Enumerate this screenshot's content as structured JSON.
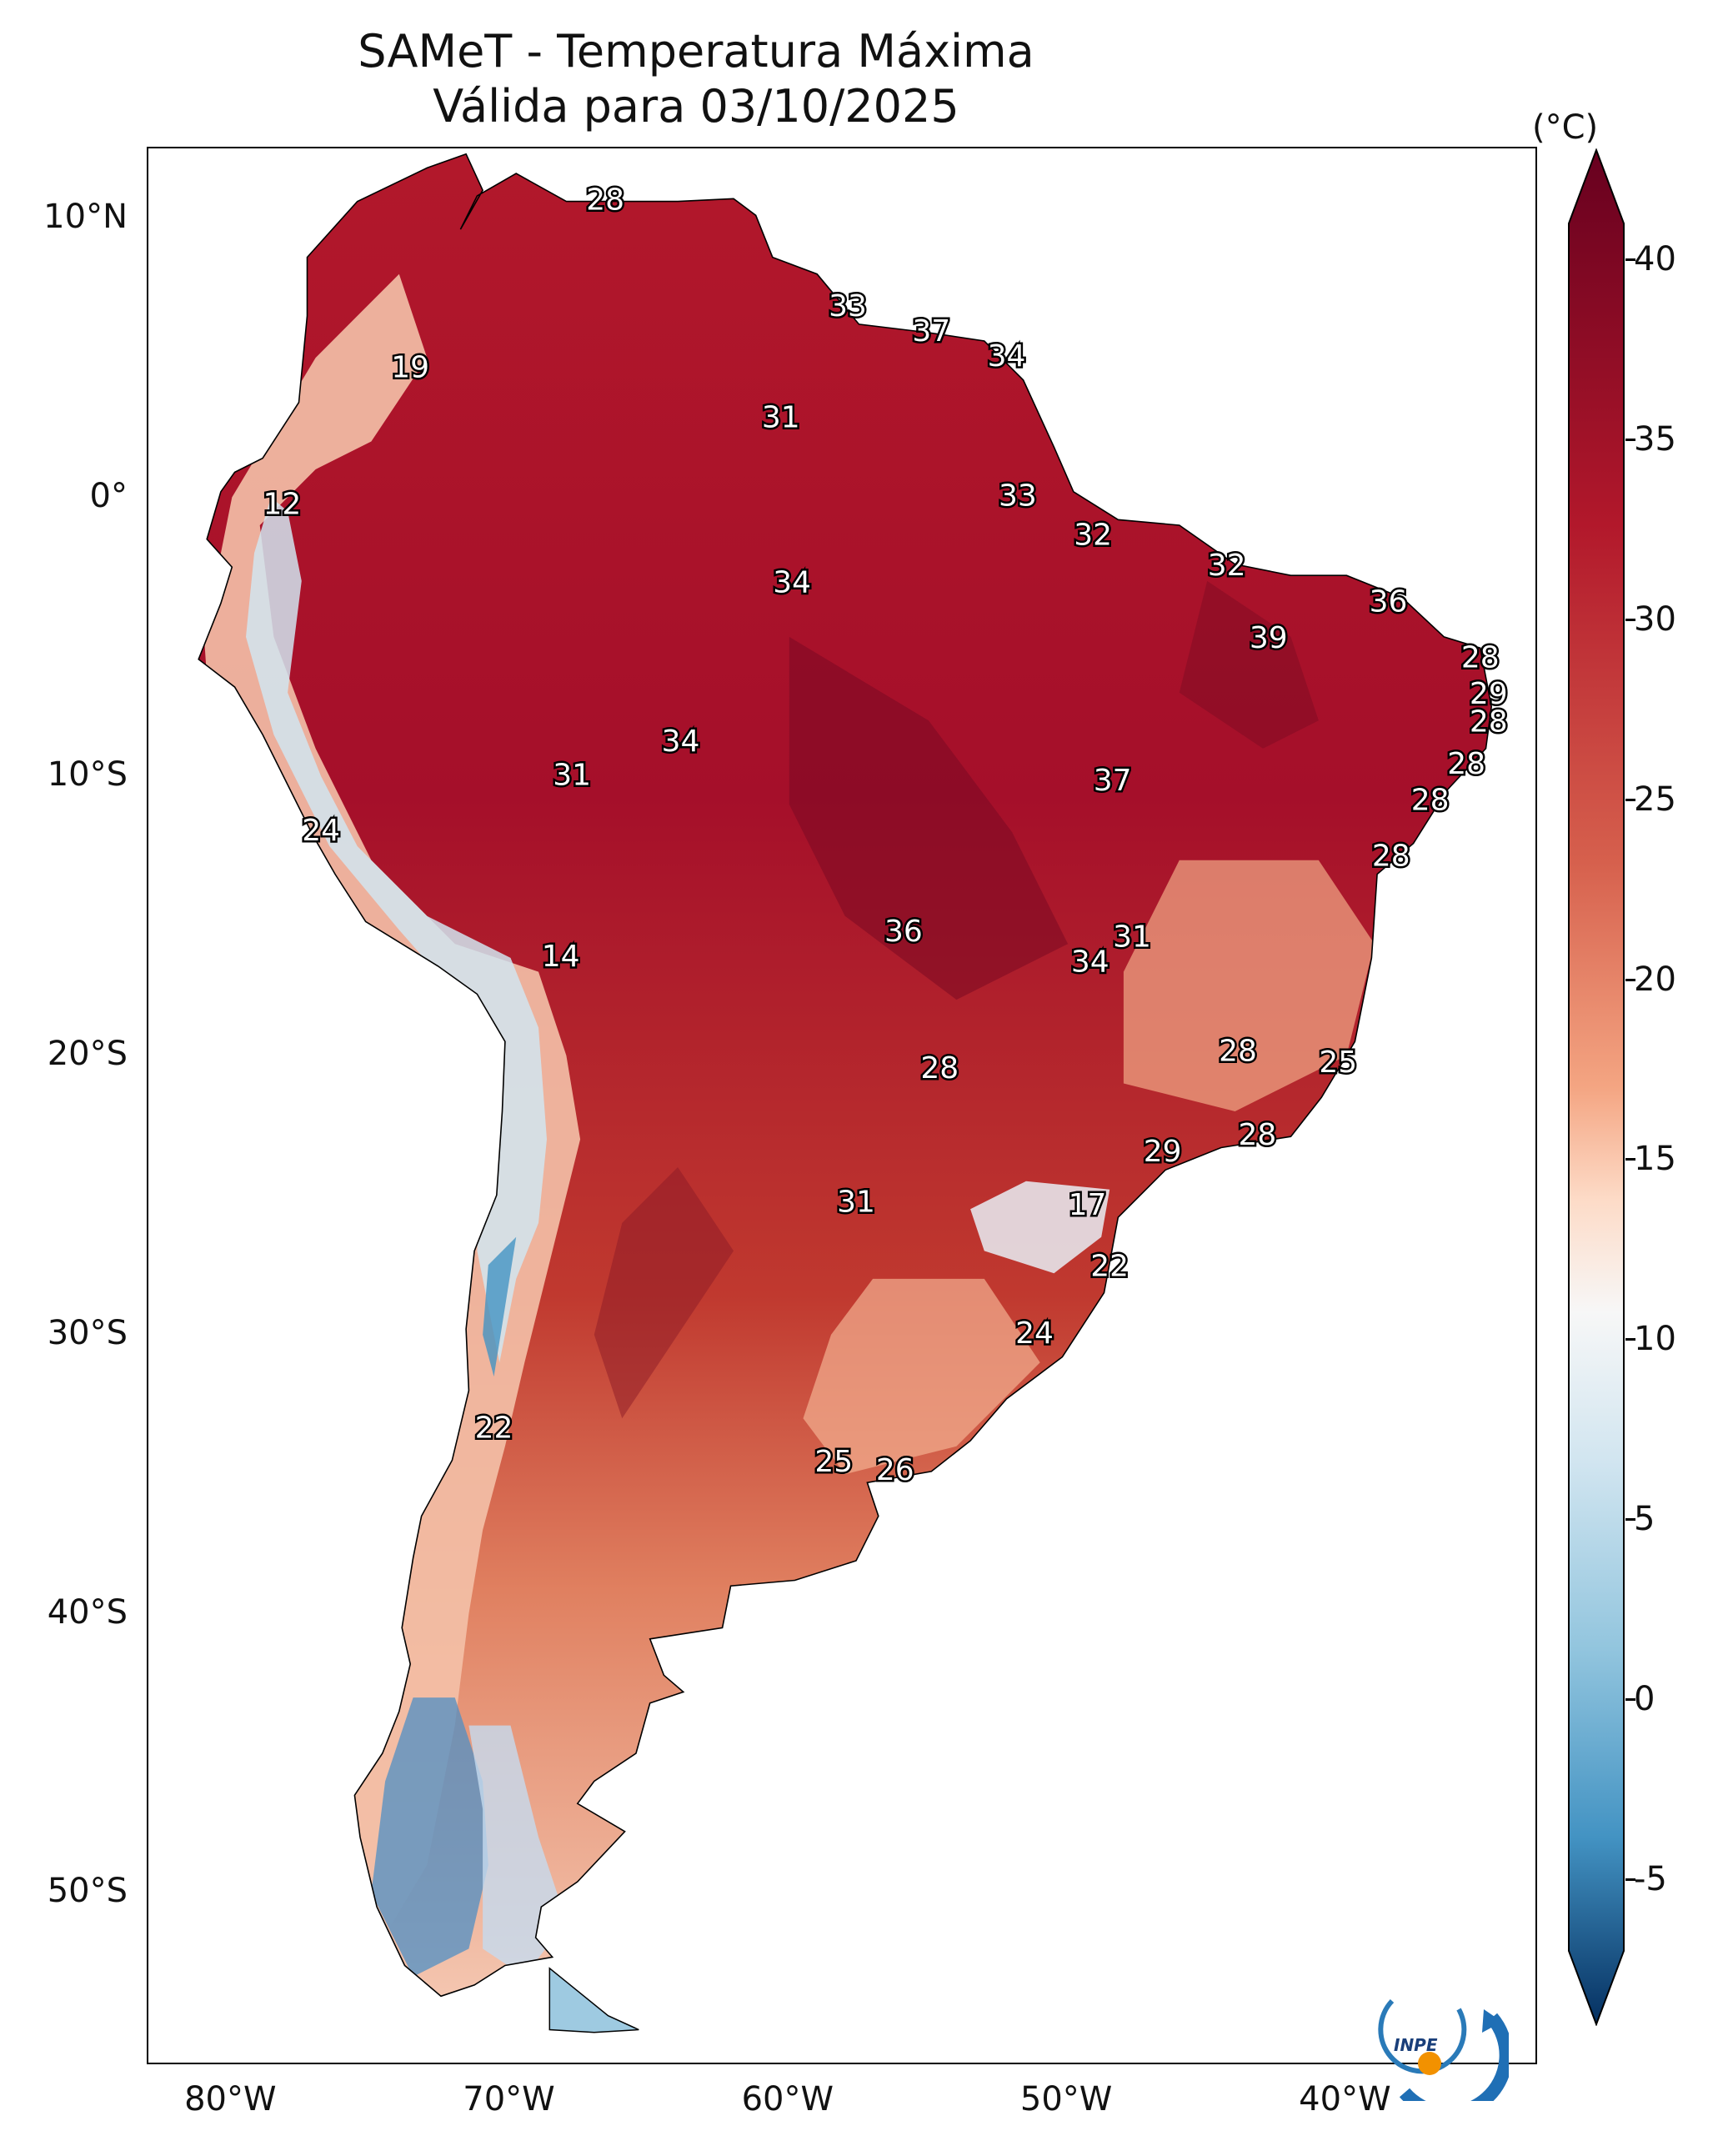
{
  "title": {
    "line1": "SAMeT - Temperatura Máxima",
    "line2": "Válida para 03/10/2025"
  },
  "axes": {
    "lat_ticks": [
      "10°N",
      "0°",
      "10°S",
      "20°S",
      "30°S",
      "40°S",
      "50°S"
    ],
    "lon_ticks": [
      "80°W",
      "70°W",
      "60°W",
      "50°W",
      "40°W"
    ]
  },
  "colorbar": {
    "unit": "(°C)",
    "ticks": [
      "40",
      "35",
      "30",
      "25",
      "20",
      "15",
      "10",
      "5",
      "0",
      "-5"
    ],
    "min": -7,
    "max": 41,
    "colors": {
      "hot": "#67001f",
      "warm": "#d6604d",
      "neutral": "#f7f7f7",
      "cool": "#92c5de",
      "cold": "#053061"
    }
  },
  "stations": [
    {
      "lon": -66.6,
      "lat": 10.6,
      "value": "28"
    },
    {
      "lon": -57.9,
      "lat": 6.8,
      "value": "33"
    },
    {
      "lon": -54.9,
      "lat": 5.9,
      "value": "37"
    },
    {
      "lon": -52.2,
      "lat": 5.0,
      "value": "34"
    },
    {
      "lon": -73.6,
      "lat": 4.6,
      "value": "19"
    },
    {
      "lon": -60.3,
      "lat": 2.8,
      "value": "31"
    },
    {
      "lon": -51.8,
      "lat": 0.0,
      "value": "33"
    },
    {
      "lon": -78.2,
      "lat": -0.3,
      "value": "12"
    },
    {
      "lon": -49.1,
      "lat": -1.4,
      "value": "32"
    },
    {
      "lon": -44.3,
      "lat": -2.5,
      "value": "32"
    },
    {
      "lon": -59.9,
      "lat": -3.1,
      "value": "34"
    },
    {
      "lon": -38.5,
      "lat": -3.8,
      "value": "36"
    },
    {
      "lon": -42.8,
      "lat": -5.1,
      "value": "39"
    },
    {
      "lon": -35.2,
      "lat": -5.8,
      "value": "28"
    },
    {
      "lon": -34.9,
      "lat": -7.1,
      "value": "29"
    },
    {
      "lon": -34.9,
      "lat": -8.1,
      "value": "28"
    },
    {
      "lon": -63.9,
      "lat": -8.8,
      "value": "34"
    },
    {
      "lon": -35.7,
      "lat": -9.6,
      "value": "28"
    },
    {
      "lon": -67.8,
      "lat": -10.0,
      "value": "31"
    },
    {
      "lon": -48.4,
      "lat": -10.2,
      "value": "37"
    },
    {
      "lon": -37.0,
      "lat": -10.9,
      "value": "28"
    },
    {
      "lon": -76.8,
      "lat": -12.0,
      "value": "24"
    },
    {
      "lon": -38.4,
      "lat": -12.9,
      "value": "28"
    },
    {
      "lon": -55.9,
      "lat": -15.6,
      "value": "36"
    },
    {
      "lon": -47.7,
      "lat": -15.8,
      "value": "31"
    },
    {
      "lon": -68.2,
      "lat": -16.5,
      "value": "14"
    },
    {
      "lon": -49.2,
      "lat": -16.7,
      "value": "34"
    },
    {
      "lon": -43.9,
      "lat": -19.9,
      "value": "28"
    },
    {
      "lon": -54.6,
      "lat": -20.5,
      "value": "28"
    },
    {
      "lon": -40.3,
      "lat": -20.3,
      "value": "25"
    },
    {
      "lon": -43.2,
      "lat": -22.9,
      "value": "28"
    },
    {
      "lon": -46.6,
      "lat": -23.5,
      "value": "29"
    },
    {
      "lon": -57.6,
      "lat": -25.3,
      "value": "31"
    },
    {
      "lon": -49.3,
      "lat": -25.4,
      "value": "17"
    },
    {
      "lon": -48.5,
      "lat": -27.6,
      "value": "22"
    },
    {
      "lon": -51.2,
      "lat": -30.0,
      "value": "24"
    },
    {
      "lon": -70.6,
      "lat": -33.4,
      "value": "22"
    },
    {
      "lon": -58.4,
      "lat": -34.6,
      "value": "25"
    },
    {
      "lon": -56.2,
      "lat": -34.9,
      "value": "26"
    }
  ]
}
